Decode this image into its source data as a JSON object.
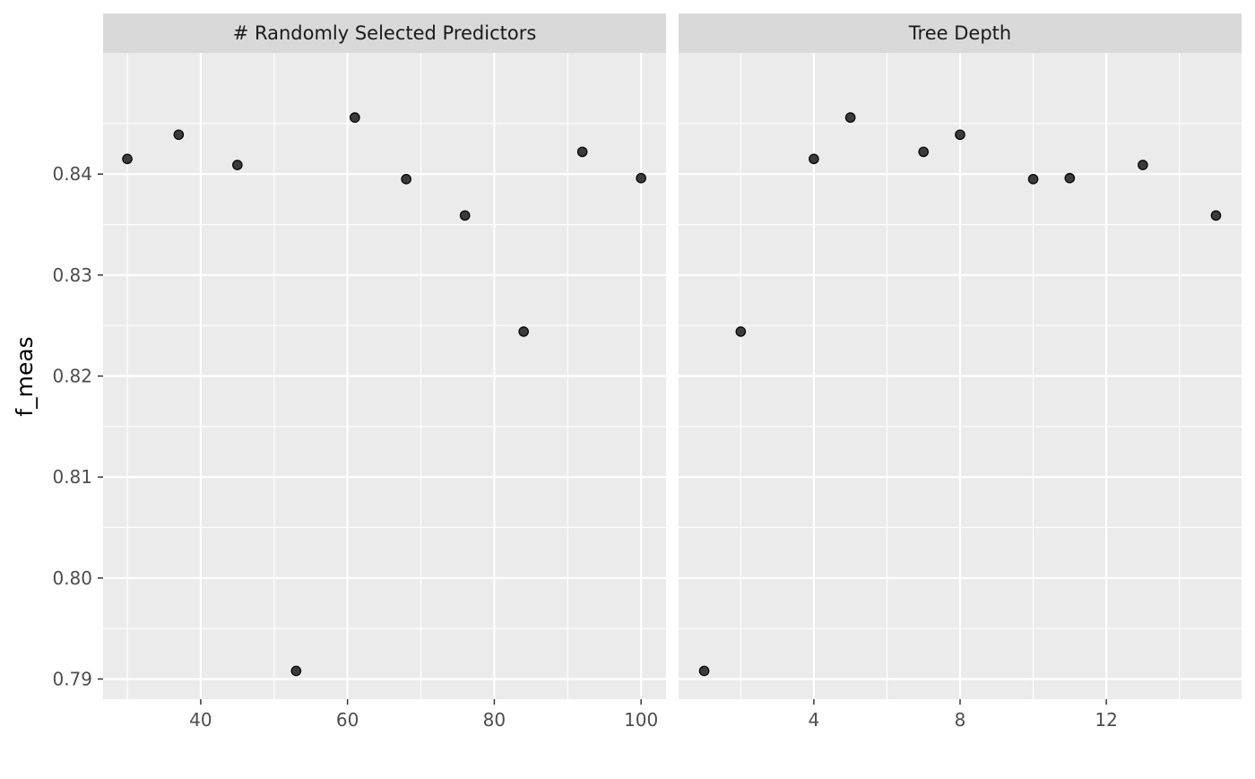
{
  "chart_data": {
    "type": "scatter",
    "ylabel": "f_meas",
    "xlabel": "",
    "ylim": [
      0.788,
      0.852
    ],
    "yticks": [
      0.79,
      0.8,
      0.81,
      0.82,
      0.83,
      0.84
    ],
    "ytick_labels": [
      "0.79",
      "0.80",
      "0.81",
      "0.82",
      "0.83",
      "0.84"
    ],
    "grid": true,
    "panels": [
      {
        "strip": "# Randomly Selected Predictors",
        "xlim": [
          26.7,
          103.4
        ],
        "xticks": [
          40,
          60,
          80,
          100
        ],
        "xtick_labels": [
          "40",
          "60",
          "80",
          "100"
        ],
        "x": [
          30,
          37,
          45,
          53,
          61,
          68,
          76,
          84,
          92,
          100
        ],
        "y": [
          0.8415,
          0.8439,
          0.8409,
          0.7908,
          0.8456,
          0.8395,
          0.8359,
          0.8244,
          0.8422,
          0.8396
        ]
      },
      {
        "strip": "Tree Depth",
        "xlim": [
          0.3,
          15.7
        ],
        "xticks": [
          4,
          8,
          12
        ],
        "xtick_labels": [
          "4",
          "8",
          "12"
        ],
        "x": [
          1,
          2,
          4,
          5,
          7,
          8,
          10,
          11,
          13,
          15
        ],
        "y": [
          0.7908,
          0.8244,
          0.8415,
          0.8456,
          0.8422,
          0.8439,
          0.8395,
          0.8396,
          0.8409,
          0.8359
        ]
      }
    ]
  }
}
